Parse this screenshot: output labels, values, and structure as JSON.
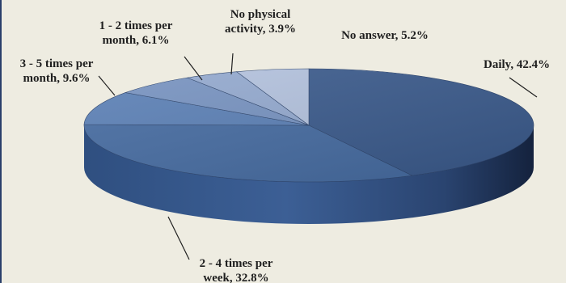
{
  "chart_data": {
    "type": "pie",
    "style": "3d-exploded-ellipse",
    "title": "",
    "slices": [
      {
        "label": "Daily",
        "value": 42.4,
        "label_lines": [
          "Daily, 42.4%"
        ],
        "color": "#3a5a8c"
      },
      {
        "label": "2 - 4 times per week",
        "value": 32.8,
        "label_lines": [
          "2 - 4 times per",
          "week, 32.8%"
        ],
        "color": "#456ba1"
      },
      {
        "label": "3 - 5 times per month",
        "value": 9.6,
        "label_lines": [
          "3 - 5 times per",
          "month, 9.6%"
        ],
        "color": "#5a7fb5"
      },
      {
        "label": "1 - 2 times per month",
        "value": 6.1,
        "label_lines": [
          "1 - 2 times per",
          "month, 6.1%"
        ],
        "color": "#7692c0"
      },
      {
        "label": "No physical activity",
        "value": 3.9,
        "label_lines": [
          "No physical",
          "activity, 3.9%"
        ],
        "color": "#93a9cf"
      },
      {
        "label": "No answer",
        "value": 5.2,
        "label_lines": [
          "No answer, 5.2%"
        ],
        "color": "#b3c2de"
      }
    ],
    "colors": {
      "background": "#eeece1",
      "border": "#2a3f6b",
      "label_text": "#1f1f1f"
    }
  }
}
